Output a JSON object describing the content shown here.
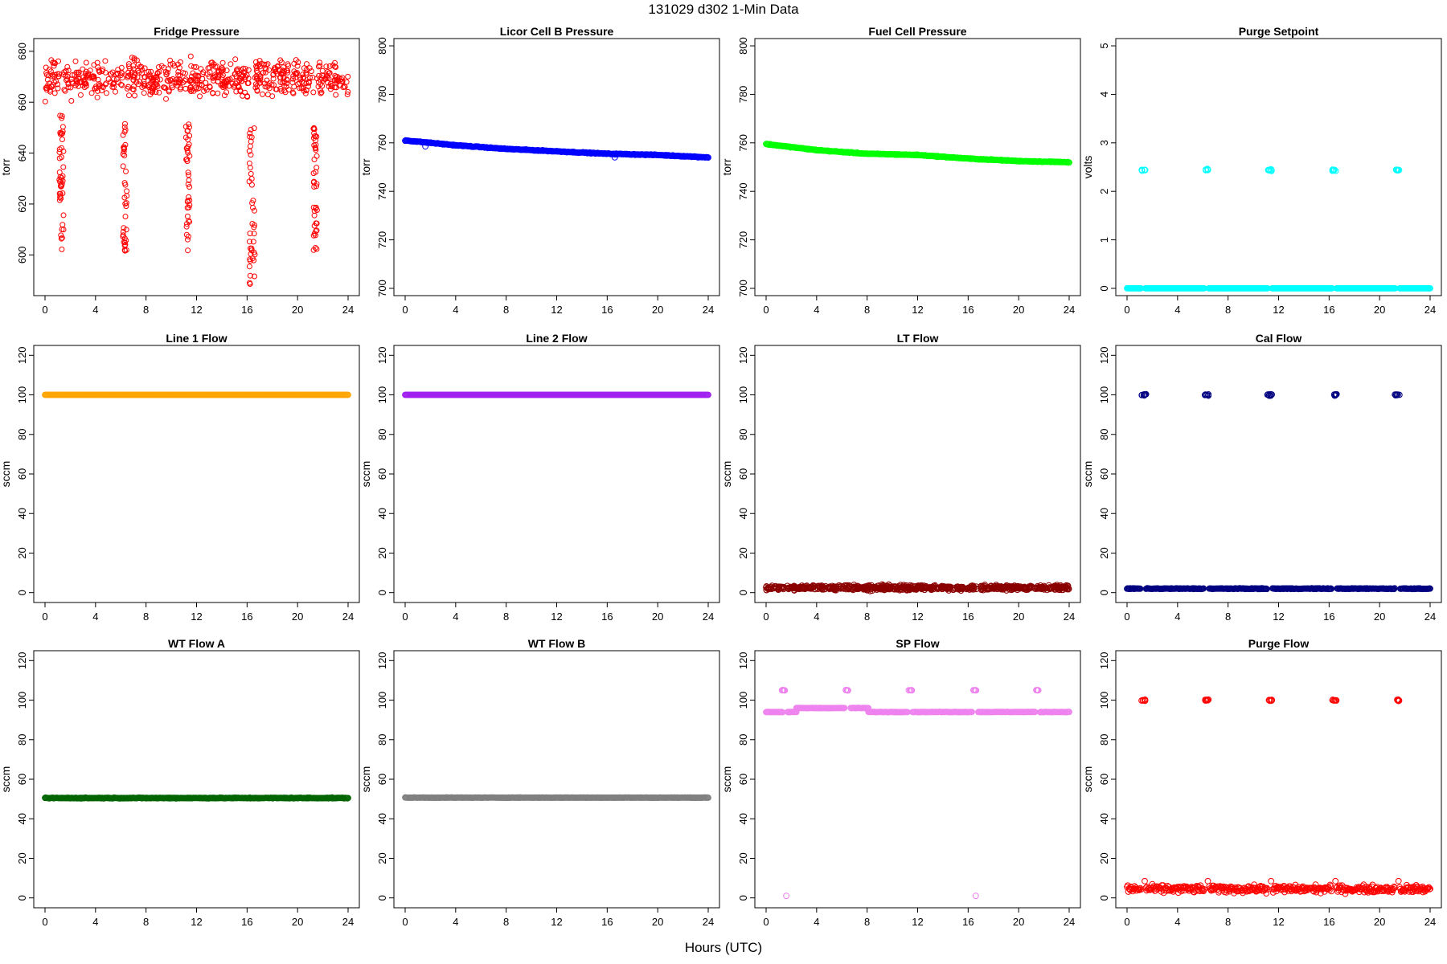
{
  "figure": {
    "title": "131029   d302   1-Min Data",
    "xlabel": "Hours (UTC)"
  },
  "colors": {
    "red": "#ff0000",
    "blue": "#0000ff",
    "green": "#00ff00",
    "cyan": "#00ffff",
    "orange": "#ffa500",
    "purple": "#a020f0",
    "darkred": "#8b0000",
    "navy": "#000080",
    "darkgreen": "#006400",
    "gray": "#808080",
    "violet": "#ee82ee"
  },
  "chart_data": [
    {
      "type": "scatter",
      "title": "Fridge Pressure",
      "ylabel": "torr",
      "color": "#ff0000",
      "xlim": [
        0,
        24
      ],
      "ylim": [
        584,
        685
      ],
      "xticks": [
        0,
        4,
        8,
        12,
        16,
        20,
        24
      ],
      "yticks": [
        600,
        620,
        640,
        660,
        680
      ],
      "series": [
        {
          "name": "Fridge Pressure",
          "kind": "noise",
          "baseline": 669,
          "spread": 7,
          "events": [
            {
              "x": 1.3,
              "width": 0.35,
              "min": 602,
              "max": 655
            },
            {
              "x": 6.3,
              "width": 0.35,
              "min": 601,
              "max": 653
            },
            {
              "x": 11.3,
              "width": 0.3,
              "min": 601,
              "max": 655
            },
            {
              "x": 16.4,
              "width": 0.45,
              "min": 588,
              "max": 650
            },
            {
              "x": 21.4,
              "width": 0.3,
              "min": 601,
              "max": 652
            }
          ]
        }
      ]
    },
    {
      "type": "scatter",
      "title": "Licor Cell B Pressure",
      "ylabel": "torr",
      "color": "#0000ff",
      "xlim": [
        0,
        24
      ],
      "ylim": [
        697,
        803
      ],
      "xticks": [
        0,
        4,
        8,
        12,
        16,
        20,
        24
      ],
      "yticks": [
        700,
        720,
        740,
        760,
        780,
        800
      ],
      "series": [
        {
          "name": "Licor Cell B Pressure",
          "kind": "line",
          "x": [
            0,
            4,
            8,
            12,
            16,
            20,
            24
          ],
          "y": [
            761,
            759,
            757.5,
            756.5,
            755.5,
            755,
            754
          ],
          "outliers": [
            {
              "x": 1.6,
              "y": 758.5
            },
            {
              "x": 16.6,
              "y": 754
            }
          ]
        }
      ]
    },
    {
      "type": "scatter",
      "title": "Fuel Cell Pressure",
      "ylabel": "torr",
      "color": "#00ff00",
      "xlim": [
        0,
        24
      ],
      "ylim": [
        697,
        803
      ],
      "xticks": [
        0,
        4,
        8,
        12,
        16,
        20,
        24
      ],
      "yticks": [
        700,
        720,
        740,
        760,
        780,
        800
      ],
      "series": [
        {
          "name": "Fuel Cell Pressure",
          "kind": "line",
          "x": [
            0,
            4,
            8,
            12,
            16,
            20,
            24
          ],
          "y": [
            759.5,
            757,
            755.5,
            755,
            753.5,
            752.5,
            752
          ]
        }
      ]
    },
    {
      "type": "scatter",
      "title": "Purge Setpoint",
      "ylabel": "volts",
      "color": "#00ffff",
      "xlim": [
        0,
        24
      ],
      "ylim": [
        -0.15,
        5.15
      ],
      "xticks": [
        0,
        4,
        8,
        12,
        16,
        20,
        24
      ],
      "yticks": [
        0,
        1,
        2,
        3,
        4,
        5
      ],
      "series": [
        {
          "name": "Purge Setpoint",
          "kind": "steps",
          "baseline": 0,
          "spread": 0,
          "pulse_value": 2.44,
          "pulses": [
            1.3,
            6.3,
            11.3,
            16.4,
            21.4
          ],
          "pulse_width": 0.3
        }
      ]
    },
    {
      "type": "scatter",
      "title": "Line 1 Flow",
      "ylabel": "sccm",
      "color": "#ffa500",
      "xlim": [
        0,
        24
      ],
      "ylim": [
        -5,
        125
      ],
      "xticks": [
        0,
        4,
        8,
        12,
        16,
        20,
        24
      ],
      "yticks": [
        0,
        20,
        40,
        60,
        80,
        100,
        120
      ],
      "series": [
        {
          "name": "Line 1 Flow",
          "kind": "flat",
          "baseline": 100,
          "spread": 0
        }
      ]
    },
    {
      "type": "scatter",
      "title": "Line 2 Flow",
      "ylabel": "sccm",
      "color": "#a020f0",
      "xlim": [
        0,
        24
      ],
      "ylim": [
        -5,
        125
      ],
      "xticks": [
        0,
        4,
        8,
        12,
        16,
        20,
        24
      ],
      "yticks": [
        0,
        20,
        40,
        60,
        80,
        100,
        120
      ],
      "series": [
        {
          "name": "Line 2 Flow",
          "kind": "flat",
          "baseline": 100,
          "spread": 0
        }
      ]
    },
    {
      "type": "scatter",
      "title": "LT Flow",
      "ylabel": "sccm",
      "color": "#8b0000",
      "xlim": [
        0,
        24
      ],
      "ylim": [
        -5,
        125
      ],
      "xticks": [
        0,
        4,
        8,
        12,
        16,
        20,
        24
      ],
      "yticks": [
        0,
        20,
        40,
        60,
        80,
        100,
        120
      ],
      "series": [
        {
          "name": "LT Flow",
          "kind": "noise",
          "baseline": 2.5,
          "spread": 1.3,
          "events": []
        }
      ]
    },
    {
      "type": "scatter",
      "title": "Cal Flow",
      "ylabel": "sccm",
      "color": "#000080",
      "xlim": [
        0,
        24
      ],
      "ylim": [
        -5,
        125
      ],
      "xticks": [
        0,
        4,
        8,
        12,
        16,
        20,
        24
      ],
      "yticks": [
        0,
        20,
        40,
        60,
        80,
        100,
        120
      ],
      "series": [
        {
          "name": "Cal Flow",
          "kind": "steps",
          "baseline": 2,
          "spread": 0.2,
          "pulse_value": 100,
          "pulses": [
            1.3,
            6.3,
            11.3,
            16.4,
            21.4
          ],
          "pulse_width": 0.4
        }
      ]
    },
    {
      "type": "scatter",
      "title": "WT Flow A",
      "ylabel": "sccm",
      "color": "#006400",
      "xlim": [
        0,
        24
      ],
      "ylim": [
        -5,
        125
      ],
      "xticks": [
        0,
        4,
        8,
        12,
        16,
        20,
        24
      ],
      "yticks": [
        0,
        20,
        40,
        60,
        80,
        100,
        120
      ],
      "series": [
        {
          "name": "WT Flow A",
          "kind": "flat",
          "baseline": 50.5,
          "spread": 0.3
        }
      ]
    },
    {
      "type": "scatter",
      "title": "WT Flow B",
      "ylabel": "sccm",
      "color": "#808080",
      "xlim": [
        0,
        24
      ],
      "ylim": [
        -5,
        125
      ],
      "xticks": [
        0,
        4,
        8,
        12,
        16,
        20,
        24
      ],
      "yticks": [
        0,
        20,
        40,
        60,
        80,
        100,
        120
      ],
      "series": [
        {
          "name": "WT Flow B",
          "kind": "flat",
          "baseline": 50.7,
          "spread": 0.15
        }
      ]
    },
    {
      "type": "scatter",
      "title": "SP Flow",
      "ylabel": "sccm",
      "color": "#ee82ee",
      "xlim": [
        0,
        24
      ],
      "ylim": [
        -5,
        125
      ],
      "xticks": [
        0,
        4,
        8,
        12,
        16,
        20,
        24
      ],
      "yticks": [
        0,
        20,
        40,
        60,
        80,
        100,
        120
      ],
      "series": [
        {
          "name": "SP Flow",
          "kind": "segments",
          "segments": [
            {
              "x0": 0,
              "x1": 1.3,
              "y": 94
            },
            {
              "x0": 1.7,
              "x1": 2.4,
              "y": 94
            },
            {
              "x0": 2.4,
              "x1": 6.2,
              "y": 96
            },
            {
              "x0": 6.7,
              "x1": 8.1,
              "y": 96
            },
            {
              "x0": 8.1,
              "x1": 11.2,
              "y": 94
            },
            {
              "x0": 11.6,
              "x1": 16.3,
              "y": 94
            },
            {
              "x0": 16.8,
              "x1": 21.3,
              "y": 94
            },
            {
              "x0": 21.7,
              "x1": 24,
              "y": 94
            }
          ],
          "pulses": [
            1.4,
            6.4,
            11.4,
            16.5,
            21.5
          ],
          "pulse_value": 105,
          "pulse_width": 0.3,
          "outliers": [
            {
              "x": 1.6,
              "y": 1
            },
            {
              "x": 16.6,
              "y": 1
            }
          ]
        }
      ]
    },
    {
      "type": "scatter",
      "title": "Purge Flow",
      "ylabel": "sccm",
      "color": "#ff0000",
      "xlim": [
        0,
        24
      ],
      "ylim": [
        -5,
        125
      ],
      "xticks": [
        0,
        4,
        8,
        12,
        16,
        20,
        24
      ],
      "yticks": [
        0,
        20,
        40,
        60,
        80,
        100,
        120
      ],
      "series": [
        {
          "name": "Purge Flow",
          "kind": "steps",
          "baseline": 4.5,
          "spread": 1.8,
          "pulse_value": 100,
          "pulses": [
            1.3,
            6.3,
            11.3,
            16.4,
            21.4
          ],
          "pulse_width": 0.35
        }
      ]
    }
  ]
}
